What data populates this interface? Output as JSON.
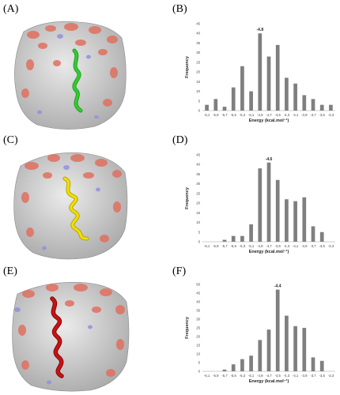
{
  "panel_labels": {
    "A": "(A)",
    "B": "(B)",
    "C": "(C)",
    "D": "(D)",
    "E": "(E)",
    "F": "(F)"
  },
  "structures": [
    {
      "panel": "(A)",
      "ribbon_color": "#33cc33"
    },
    {
      "panel": "(C)",
      "ribbon_color": "#f2e000"
    },
    {
      "panel": "(E)",
      "ribbon_color": "#cc1111"
    }
  ],
  "chart_data": [
    {
      "panel": "(B)",
      "type": "bar",
      "xlabel": "Energy (kcal.mol⁻¹)",
      "ylabel": "Frequency",
      "categories": [
        "-6,1",
        "-5,9",
        "-5,7",
        "-5,5",
        "-5,3",
        "-5,1",
        "-4,9",
        "-4,7",
        "-4,5",
        "-4,3",
        "-4,1",
        "-3,9",
        "-3,7",
        "-3,5",
        "-3,3"
      ],
      "values": [
        3,
        6,
        2,
        12,
        23,
        10,
        40,
        28,
        34,
        17,
        14,
        8,
        6,
        3,
        3
      ],
      "ylim": [
        0,
        45
      ],
      "yticks": [
        0,
        5,
        10,
        15,
        20,
        25,
        30,
        35,
        40,
        45
      ],
      "peak_label": "-4.8",
      "peak_index": 6,
      "bar_color": "#7f7f7f"
    },
    {
      "panel": "(D)",
      "type": "bar",
      "xlabel": "Energy (kcal.mol⁻¹)",
      "ylabel": "Frequency",
      "categories": [
        "-6,1",
        "-5,9",
        "-5,7",
        "-5,5",
        "-5,3",
        "-5,1",
        "-4,9",
        "-4,7",
        "-4,5",
        "-4,3",
        "-4,1",
        "-3,9",
        "-3,7",
        "-3,5",
        "-3,3"
      ],
      "values": [
        0,
        0,
        1,
        3,
        3,
        9,
        38,
        41,
        32,
        22,
        21,
        23,
        8,
        5,
        0
      ],
      "ylim": [
        0,
        45
      ],
      "yticks": [
        0,
        5,
        10,
        15,
        20,
        25,
        30,
        35,
        40,
        45
      ],
      "peak_label": "-4.6",
      "peak_index": 7,
      "bar_color": "#7f7f7f"
    },
    {
      "panel": "(F)",
      "type": "bar",
      "xlabel": "Energy (kcal.mol⁻¹)",
      "ylabel": "Frequency",
      "categories": [
        "-6,1",
        "-5,9",
        "-5,7",
        "-5,5",
        "-5,3",
        "-5,1",
        "-4,9",
        "-4,7",
        "-4,5",
        "-4,3",
        "-4,1",
        "-3,9",
        "-3,7",
        "-3,5",
        "-3,3"
      ],
      "values": [
        0,
        0,
        1,
        4,
        7,
        9,
        18,
        24,
        47,
        32,
        26,
        25,
        8,
        6,
        0
      ],
      "ylim": [
        0,
        50
      ],
      "yticks": [
        0,
        5,
        10,
        15,
        20,
        25,
        30,
        35,
        40,
        45,
        50
      ],
      "peak_label": "-4.4",
      "peak_index": 8,
      "bar_color": "#7f7f7f"
    }
  ]
}
